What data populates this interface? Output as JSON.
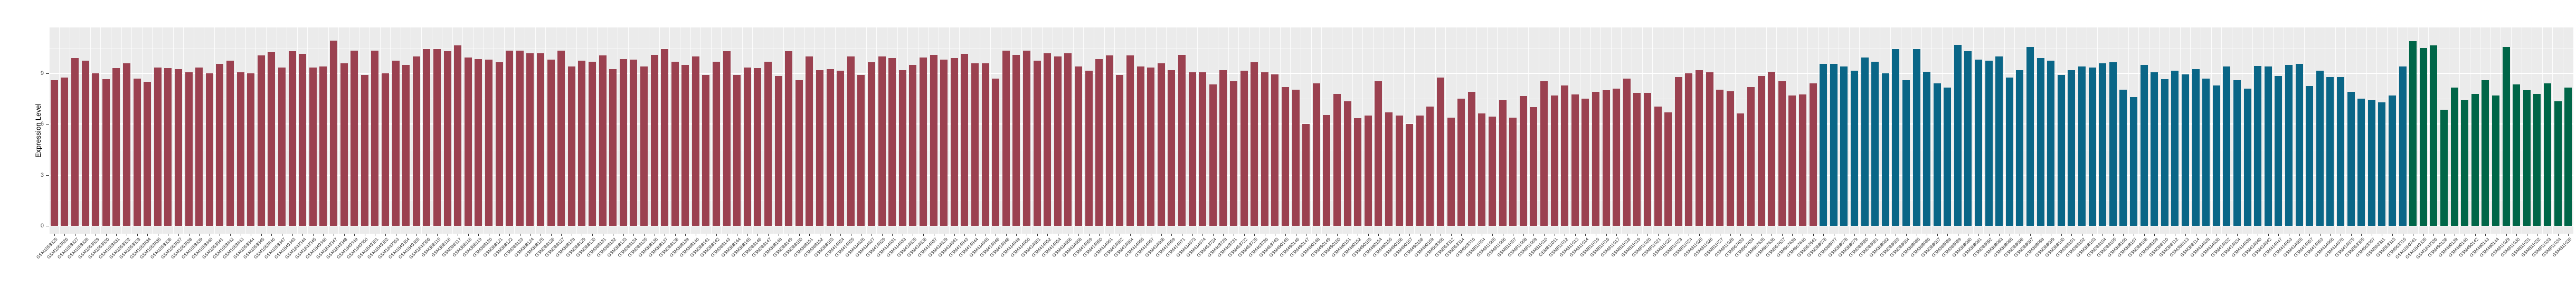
{
  "figure": {
    "y_axis_title": "Expression Level",
    "panel_background": "#EBEBEB",
    "gridline_color": "#ffffff",
    "tick_color": "#333333",
    "axis_text_color": "#4d4d4d"
  },
  "chart_data": {
    "type": "bar",
    "title": "",
    "xlabel": "",
    "ylabel": "Expression Level",
    "ylim": [
      0,
      11.7
    ],
    "yticks": [
      0,
      3,
      6,
      9
    ],
    "yticks_minor": [
      1.5,
      4.5,
      7.5,
      10.5
    ],
    "grid": "white major and minor gridlines on gray panel, vertical white line at each category boundary",
    "legend_position": "none",
    "x_tick_rotation_deg": 45,
    "group_spans": [
      {
        "name": "group-red",
        "color": "#9B4150",
        "start": 0,
        "count": 171
      },
      {
        "name": "group-blue",
        "color": "#0A6687",
        "start": 171,
        "count": 57
      },
      {
        "name": "group-green",
        "color": "#006648",
        "start": 228,
        "count": 16
      }
    ],
    "categories": [
      "GSM1053825",
      "GSM1053826",
      "GSM1053827",
      "GSM1053828",
      "GSM1053829",
      "GSM1053830",
      "GSM1053831",
      "GSM1053832",
      "GSM1053833",
      "GSM1053834",
      "GSM1053835",
      "GSM1053836",
      "GSM1053837",
      "GSM1053838",
      "GSM1053839",
      "GSM1053840",
      "GSM1053841",
      "GSM1053842",
      "GSM1053843",
      "GSM1053844",
      "GSM1053845",
      "GSM1053846",
      "GSM1053847",
      "GSM1849343",
      "GSM1849344",
      "GSM1849345",
      "GSM1849346",
      "GSM1849347",
      "GSM1849348",
      "GSM1849349",
      "GSM1849350",
      "GSM1849351",
      "GSM1849352",
      "GSM1849353",
      "GSM1849354",
      "GSM1849355",
      "GSM1849356",
      "GSM388115",
      "GSM388116",
      "GSM388117",
      "GSM388118",
      "GSM388119",
      "GSM388120",
      "GSM388121",
      "GSM388122",
      "GSM388123",
      "GSM388124",
      "GSM388125",
      "GSM388126",
      "GSM388127",
      "GSM388128",
      "GSM388129",
      "GSM388130",
      "GSM388131",
      "GSM388132",
      "GSM388133",
      "GSM388134",
      "GSM388135",
      "GSM388136",
      "GSM388137",
      "GSM388138",
      "GSM388139",
      "GSM388140",
      "GSM388141",
      "GSM388142",
      "GSM388143",
      "GSM388144",
      "GSM388145",
      "GSM388146",
      "GSM388147",
      "GSM388148",
      "GSM388149",
      "GSM388150",
      "GSM388151",
      "GSM388152",
      "GSM388153",
      "GSM414924",
      "GSM414925",
      "GSM414926",
      "GSM414927",
      "GSM414929",
      "GSM414931",
      "GSM414933",
      "GSM414935",
      "GSM414936",
      "GSM414937",
      "GSM414939",
      "GSM414941",
      "GSM414943",
      "GSM414944",
      "GSM414945",
      "GSM414946",
      "GSM414948",
      "GSM414949",
      "GSM414950",
      "GSM414951",
      "GSM414952",
      "GSM414954",
      "GSM414956",
      "GSM414958",
      "GSM414959",
      "GSM414960",
      "GSM414961",
      "GSM414962",
      "GSM414964",
      "GSM414965",
      "GSM414967",
      "GSM414968",
      "GSM414969",
      "GSM414971",
      "GSM414973",
      "GSM414974",
      "GSM463724",
      "GSM463728",
      "GSM463731",
      "GSM463732",
      "GSM463735",
      "GSM463736",
      "GSM463743",
      "GSM490145",
      "GSM490146",
      "GSM490147",
      "GSM490148",
      "GSM490149",
      "GSM490150",
      "GSM490151",
      "GSM490152",
      "GSM490153",
      "GSM490154",
      "GSM490155",
      "GSM490156",
      "GSM490157",
      "GSM490158",
      "GSM490159",
      "GSM563306",
      "GSM563312",
      "GSM563314",
      "GSM563316",
      "GSM811004",
      "GSM811005",
      "GSM811006",
      "GSM811007",
      "GSM811008",
      "GSM811009",
      "GSM811010",
      "GSM811011",
      "GSM811012",
      "GSM811013",
      "GSM811014",
      "GSM811015",
      "GSM811016",
      "GSM811017",
      "GSM811018",
      "GSM811019",
      "GSM811020",
      "GSM811021",
      "GSM811022",
      "GSM811023",
      "GSM811024",
      "GSM811025",
      "GSM811026",
      "GSM811027",
      "GSM811028",
      "GSM967633",
      "GSM967634",
      "GSM967635",
      "GSM967636",
      "GSM967637",
      "GSM967638",
      "GSM967640",
      "GSM967641",
      "GSM388076",
      "GSM388077",
      "GSM388078",
      "GSM388079",
      "GSM388080",
      "GSM388081",
      "GSM388082",
      "GSM388083",
      "GSM388084",
      "GSM388085",
      "GSM388086",
      "GSM388087",
      "GSM388088",
      "GSM388089",
      "GSM388090",
      "GSM388091",
      "GSM388092",
      "GSM388093",
      "GSM388095",
      "GSM388096",
      "GSM388097",
      "GSM388098",
      "GSM388099",
      "GSM388100",
      "GSM388101",
      "GSM388102",
      "GSM388103",
      "GSM388104",
      "GSM388105",
      "GSM388106",
      "GSM388107",
      "GSM388108",
      "GSM388109",
      "GSM388110",
      "GSM388112",
      "GSM388113",
      "GSM388114",
      "GSM414928",
      "GSM414930",
      "GSM414932",
      "GSM414934",
      "GSM414938",
      "GSM414940",
      "GSM414942",
      "GSM414947",
      "GSM414953",
      "GSM414955",
      "GSM414957",
      "GSM414963",
      "GSM414966",
      "GSM414970",
      "GSM414975",
      "GSM563305",
      "GSM563307",
      "GSM563311",
      "GSM563313",
      "GSM563315",
      "GSM1060741",
      "GSM1849335",
      "GSM1849336",
      "GSM490138",
      "GSM490139",
      "GSM490140",
      "GSM490142",
      "GSM490143",
      "GSM490144",
      "GSM811029",
      "GSM811030",
      "GSM811031",
      "GSM811032",
      "GSM811033",
      "GSM811034",
      "GSM811035"
    ],
    "values": [
      8.6,
      8.75,
      9.9,
      9.75,
      9.0,
      8.65,
      9.3,
      9.6,
      8.7,
      8.5,
      9.35,
      9.3,
      9.25,
      9.05,
      9.35,
      9.0,
      9.55,
      9.75,
      9.05,
      9.0,
      10.05,
      10.25,
      9.35,
      10.3,
      10.15,
      9.35,
      9.4,
      10.95,
      9.6,
      10.35,
      8.9,
      10.35,
      9.0,
      9.75,
      9.5,
      10.0,
      10.45,
      10.45,
      10.3,
      10.65,
      9.95,
      9.85,
      9.8,
      9.65,
      10.35,
      10.35,
      10.2,
      10.2,
      9.8,
      10.35,
      9.4,
      9.75,
      9.7,
      10.05,
      9.25,
      9.85,
      9.8,
      9.4,
      10.1,
      10.45,
      9.7,
      9.5,
      10.0,
      8.9,
      9.7,
      10.3,
      8.9,
      9.35,
      9.3,
      9.7,
      8.85,
      10.3,
      8.6,
      10.0,
      9.2,
      9.25,
      9.15,
      10.0,
      8.9,
      9.65,
      10.0,
      9.9,
      9.2,
      9.5,
      9.95,
      10.1,
      9.8,
      9.9,
      10.15,
      9.6,
      9.6,
      8.7,
      10.35,
      10.1,
      10.35,
      9.75,
      10.2,
      10.0,
      10.2,
      9.4,
      9.15,
      9.85,
      10.05,
      8.9,
      10.05,
      9.4,
      9.35,
      9.6,
      9.2,
      10.1,
      9.05,
      9.05,
      8.35,
      9.2,
      8.55,
      9.15,
      9.65,
      9.05,
      8.95,
      8.2,
      8.05,
      6.0,
      8.4,
      6.55,
      7.8,
      7.35,
      6.35,
      6.5,
      8.55,
      6.7,
      6.5,
      6.0,
      6.5,
      7.05,
      8.75,
      6.4,
      7.5,
      7.9,
      6.65,
      6.45,
      7.4,
      6.4,
      7.65,
      7.0,
      8.55,
      7.7,
      8.3,
      7.75,
      7.5,
      7.9,
      8.0,
      8.1,
      8.7,
      7.85,
      7.85,
      7.05,
      6.7,
      8.8,
      9.0,
      9.2,
      9.05,
      8.05,
      7.95,
      6.65,
      8.2,
      8.85,
      9.1,
      8.55,
      7.7,
      7.75,
      8.4,
      9.55,
      9.55,
      9.4,
      9.15,
      9.95,
      9.7,
      9.0,
      10.45,
      8.6,
      10.45,
      9.1,
      8.4,
      8.15,
      10.7,
      10.3,
      9.8,
      9.75,
      10.0,
      8.75,
      9.2,
      10.55,
      9.9,
      9.75,
      8.9,
      9.2,
      9.4,
      9.35,
      9.6,
      9.65,
      8.05,
      7.6,
      9.5,
      9.05,
      8.65,
      9.15,
      8.95,
      9.25,
      8.7,
      8.3,
      9.4,
      8.6,
      8.1,
      9.45,
      9.4,
      8.85,
      9.5,
      9.55,
      8.25,
      9.15,
      8.8,
      8.8,
      7.9,
      7.5,
      7.4,
      7.3,
      7.7,
      9.4,
      10.9,
      10.5,
      10.65,
      6.85,
      8.15,
      7.4,
      7.8,
      8.6,
      7.7,
      10.55,
      8.35,
      8.0,
      7.8,
      8.4,
      7.35,
      8.15
    ]
  }
}
